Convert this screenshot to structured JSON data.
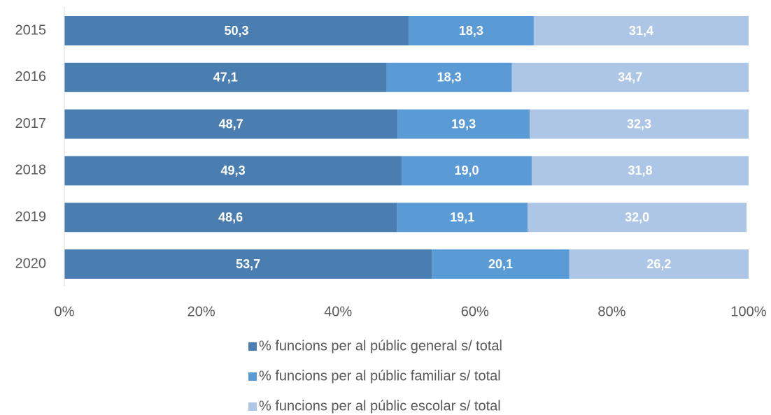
{
  "chart_data": {
    "type": "stacked_barh",
    "categories": [
      "2015",
      "2016",
      "2017",
      "2018",
      "2019",
      "2020"
    ],
    "series": [
      {
        "name": "% funcions per al públic general s/ total",
        "color": "#4a7eb0",
        "values": [
          50.3,
          47.1,
          48.7,
          49.3,
          48.6,
          53.7
        ],
        "value_labels": [
          "50,3",
          "47,1",
          "48,7",
          "49,3",
          "48,6",
          "53,7"
        ]
      },
      {
        "name": "% funcions per al públic familiar s/ total",
        "color": "#5b9bd5",
        "values": [
          18.3,
          18.3,
          19.3,
          19.0,
          19.1,
          20.1
        ],
        "value_labels": [
          "18,3",
          "18,3",
          "19,3",
          "19,0",
          "19,1",
          "20,1"
        ]
      },
      {
        "name": "% funcions per al públic escolar s/ total",
        "color": "#aec6e6",
        "values": [
          31.4,
          34.7,
          32.3,
          31.8,
          32.0,
          26.2
        ],
        "value_labels": [
          "31,4",
          "34,7",
          "32,3",
          "31,8",
          "32,0",
          "26,2"
        ]
      }
    ],
    "xlim": [
      0,
      100
    ],
    "xticks": [
      {
        "value": 0,
        "label": "0%"
      },
      {
        "value": 20,
        "label": "20%"
      },
      {
        "value": 40,
        "label": "40%"
      },
      {
        "value": 60,
        "label": "60%"
      },
      {
        "value": 80,
        "label": "80%"
      },
      {
        "value": 100,
        "label": "100%"
      }
    ],
    "legend": "bottom"
  }
}
